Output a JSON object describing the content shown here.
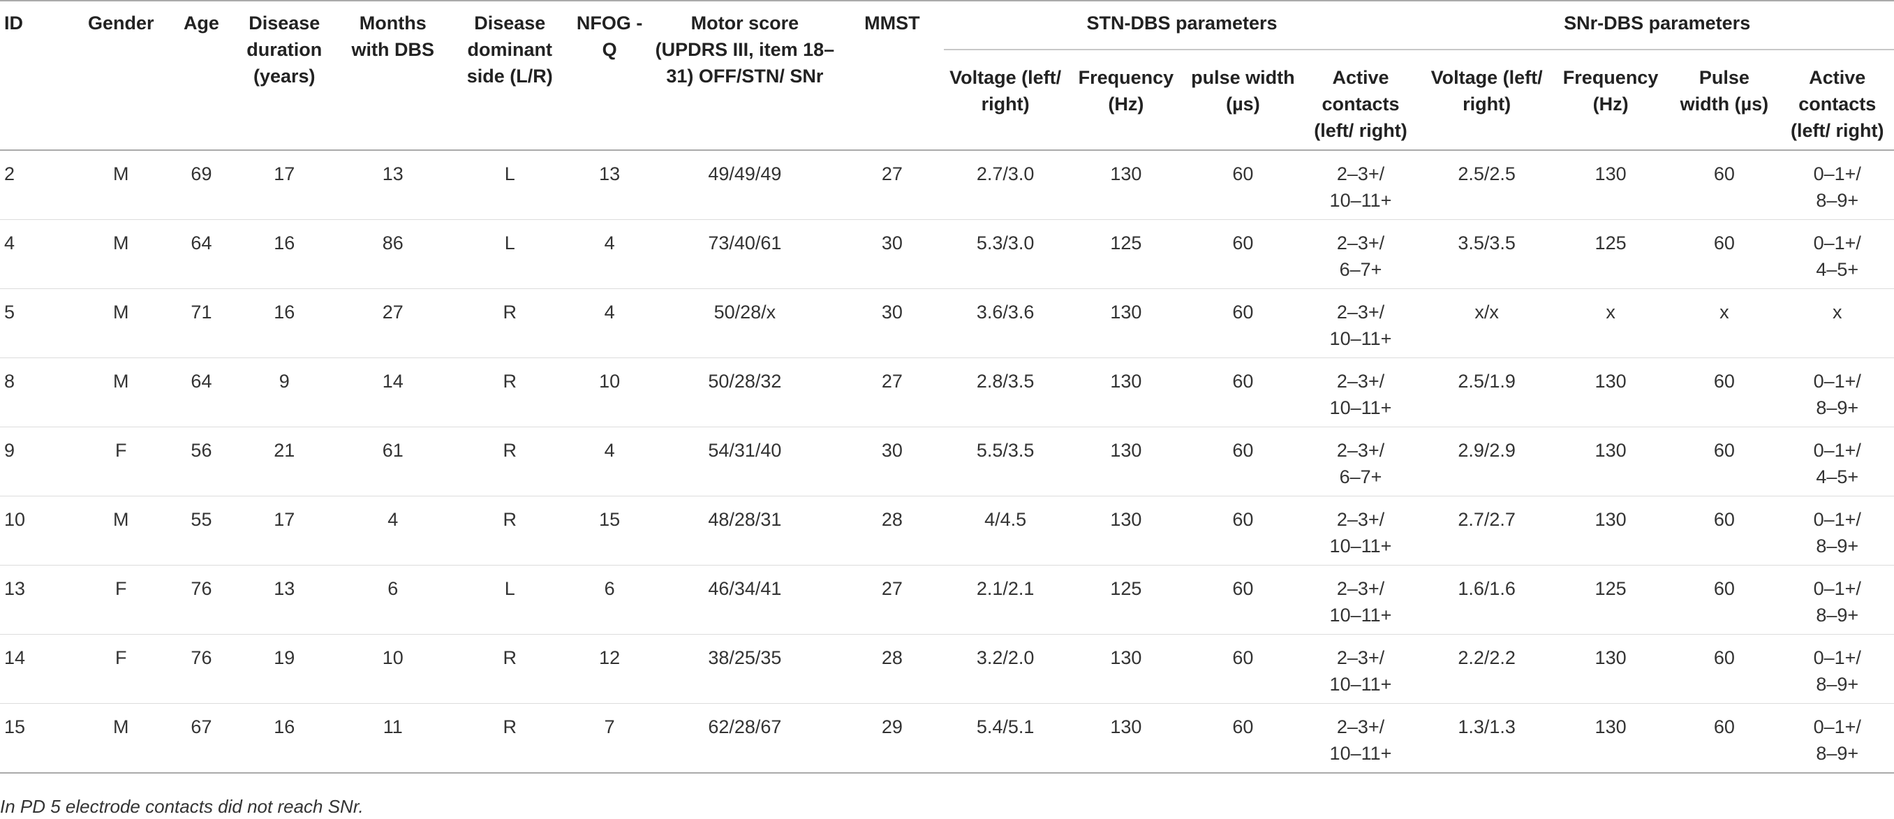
{
  "headers": {
    "id": "ID",
    "gender": "Gender",
    "age": "Age",
    "disease_duration": "Disease duration (years)",
    "months_dbs": "Months with DBS",
    "dominant_side": "Disease dominant side (L/R)",
    "nfog": "NFOG -Q",
    "motor": "Motor score (UPDRS III, item 18–31) OFF/STN/ SNr",
    "mmst": "MMST",
    "stn_group": "STN-DBS parameters",
    "snr_group": "SNr-DBS parameters",
    "stn_voltage": "Voltage (left/ right)",
    "stn_frequency": "Frequency (Hz)",
    "stn_pulse": "pulse width (µs)",
    "stn_contacts": "Active contacts (left/ right)",
    "snr_voltage": "Voltage (left/ right)",
    "snr_frequency": "Frequency (Hz)",
    "snr_pulse": "Pulse width (µs)",
    "snr_contacts": "Active contacts (left/ right)"
  },
  "rows": [
    {
      "id": "2",
      "gender": "M",
      "age": "69",
      "duration": "17",
      "months": "13",
      "side": "L",
      "nfog": "13",
      "motor": "49/49/49",
      "mmst": "27",
      "stn_v": "2.7/3.0",
      "stn_f": "130",
      "stn_pw": "60",
      "stn_c1": "2–3+/",
      "stn_c2": "10–11+",
      "snr_v": "2.5/2.5",
      "snr_f": "130",
      "snr_pw": "60",
      "snr_c1": "0–1+/",
      "snr_c2": "8–9+"
    },
    {
      "id": "4",
      "gender": "M",
      "age": "64",
      "duration": "16",
      "months": "86",
      "side": "L",
      "nfog": "4",
      "motor": "73/40/61",
      "mmst": "30",
      "stn_v": "5.3/3.0",
      "stn_f": "125",
      "stn_pw": "60",
      "stn_c1": "2–3+/",
      "stn_c2": "6–7+",
      "snr_v": "3.5/3.5",
      "snr_f": "125",
      "snr_pw": "60",
      "snr_c1": "0–1+/",
      "snr_c2": "4–5+"
    },
    {
      "id": "5",
      "gender": "M",
      "age": "71",
      "duration": "16",
      "months": "27",
      "side": "R",
      "nfog": "4",
      "motor": "50/28/x",
      "mmst": "30",
      "stn_v": "3.6/3.6",
      "stn_f": "130",
      "stn_pw": "60",
      "stn_c1": "2–3+/",
      "stn_c2": "10–11+",
      "snr_v": "x/x",
      "snr_f": "x",
      "snr_pw": "x",
      "snr_c1": "x",
      "snr_c2": ""
    },
    {
      "id": "8",
      "gender": "M",
      "age": "64",
      "duration": "9",
      "months": "14",
      "side": "R",
      "nfog": "10",
      "motor": "50/28/32",
      "mmst": "27",
      "stn_v": "2.8/3.5",
      "stn_f": "130",
      "stn_pw": "60",
      "stn_c1": "2–3+/",
      "stn_c2": "10–11+",
      "snr_v": "2.5/1.9",
      "snr_f": "130",
      "snr_pw": "60",
      "snr_c1": "0–1+/",
      "snr_c2": "8–9+"
    },
    {
      "id": "9",
      "gender": "F",
      "age": "56",
      "duration": "21",
      "months": "61",
      "side": "R",
      "nfog": "4",
      "motor": "54/31/40",
      "mmst": "30",
      "stn_v": "5.5/3.5",
      "stn_f": "130",
      "stn_pw": "60",
      "stn_c1": "2–3+/",
      "stn_c2": "6–7+",
      "snr_v": "2.9/2.9",
      "snr_f": "130",
      "snr_pw": "60",
      "snr_c1": "0–1+/",
      "snr_c2": "4–5+"
    },
    {
      "id": "10",
      "gender": "M",
      "age": "55",
      "duration": "17",
      "months": "4",
      "side": "R",
      "nfog": "15",
      "motor": "48/28/31",
      "mmst": "28",
      "stn_v": "4/4.5",
      "stn_f": "130",
      "stn_pw": "60",
      "stn_c1": "2–3+/",
      "stn_c2": "10–11+",
      "snr_v": "2.7/2.7",
      "snr_f": "130",
      "snr_pw": "60",
      "snr_c1": "0–1+/",
      "snr_c2": "8–9+"
    },
    {
      "id": "13",
      "gender": "F",
      "age": "76",
      "duration": "13",
      "months": "6",
      "side": "L",
      "nfog": "6",
      "motor": "46/34/41",
      "mmst": "27",
      "stn_v": "2.1/2.1",
      "stn_f": "125",
      "stn_pw": "60",
      "stn_c1": "2–3+/",
      "stn_c2": "10–11+",
      "snr_v": "1.6/1.6",
      "snr_f": "125",
      "snr_pw": "60",
      "snr_c1": "0–1+/",
      "snr_c2": "8–9+"
    },
    {
      "id": "14",
      "gender": "F",
      "age": "76",
      "duration": "19",
      "months": "10",
      "side": "R",
      "nfog": "12",
      "motor": "38/25/35",
      "mmst": "28",
      "stn_v": "3.2/2.0",
      "stn_f": "130",
      "stn_pw": "60",
      "stn_c1": "2–3+/",
      "stn_c2": "10–11+",
      "snr_v": "2.2/2.2",
      "snr_f": "130",
      "snr_pw": "60",
      "snr_c1": "0–1+/",
      "snr_c2": "8–9+"
    },
    {
      "id": "15",
      "gender": "M",
      "age": "67",
      "duration": "16",
      "months": "11",
      "side": "R",
      "nfog": "7",
      "motor": "62/28/67",
      "mmst": "29",
      "stn_v": "5.4/5.1",
      "stn_f": "130",
      "stn_pw": "60",
      "stn_c1": "2–3+/",
      "stn_c2": "10–11+",
      "snr_v": "1.3/1.3",
      "snr_f": "130",
      "snr_pw": "60",
      "snr_c1": "0–1+/",
      "snr_c2": "8–9+"
    }
  ],
  "footnote": "In PD 5 electrode contacts did not reach SNr."
}
